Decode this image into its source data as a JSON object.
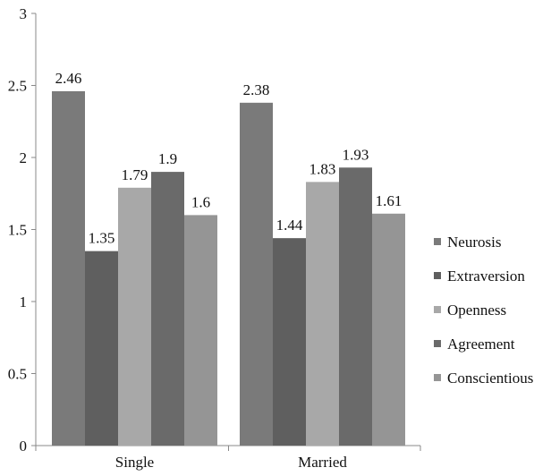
{
  "chart_data": {
    "type": "bar",
    "categories": [
      "Single",
      "Married"
    ],
    "series": [
      {
        "name": "Neurosis",
        "values": [
          2.46,
          2.38
        ],
        "color": "#7a7a7a"
      },
      {
        "name": "Extraversion",
        "values": [
          1.35,
          1.44
        ],
        "color": "#5f5f5f"
      },
      {
        "name": "Openness",
        "values": [
          1.79,
          1.83
        ],
        "color": "#a8a8a8"
      },
      {
        "name": "Agreement",
        "values": [
          1.9,
          1.93
        ],
        "color": "#6a6a6a"
      },
      {
        "name": "Conscientious",
        "values": [
          1.6,
          1.61
        ],
        "color": "#959595"
      }
    ],
    "data_labels": [
      [
        "2.46",
        "2.38"
      ],
      [
        "1.35",
        "1.44"
      ],
      [
        "1.79",
        "1.83"
      ],
      [
        "1.9",
        "1.93"
      ],
      [
        "1.6",
        "1.61"
      ]
    ],
    "y_ticks": [
      "0",
      "0.5",
      "1",
      "1.5",
      "2",
      "2.5",
      "3"
    ],
    "ylim": [
      0,
      3
    ],
    "grid": false,
    "legend_position": "right",
    "axis_color": "#888888"
  }
}
